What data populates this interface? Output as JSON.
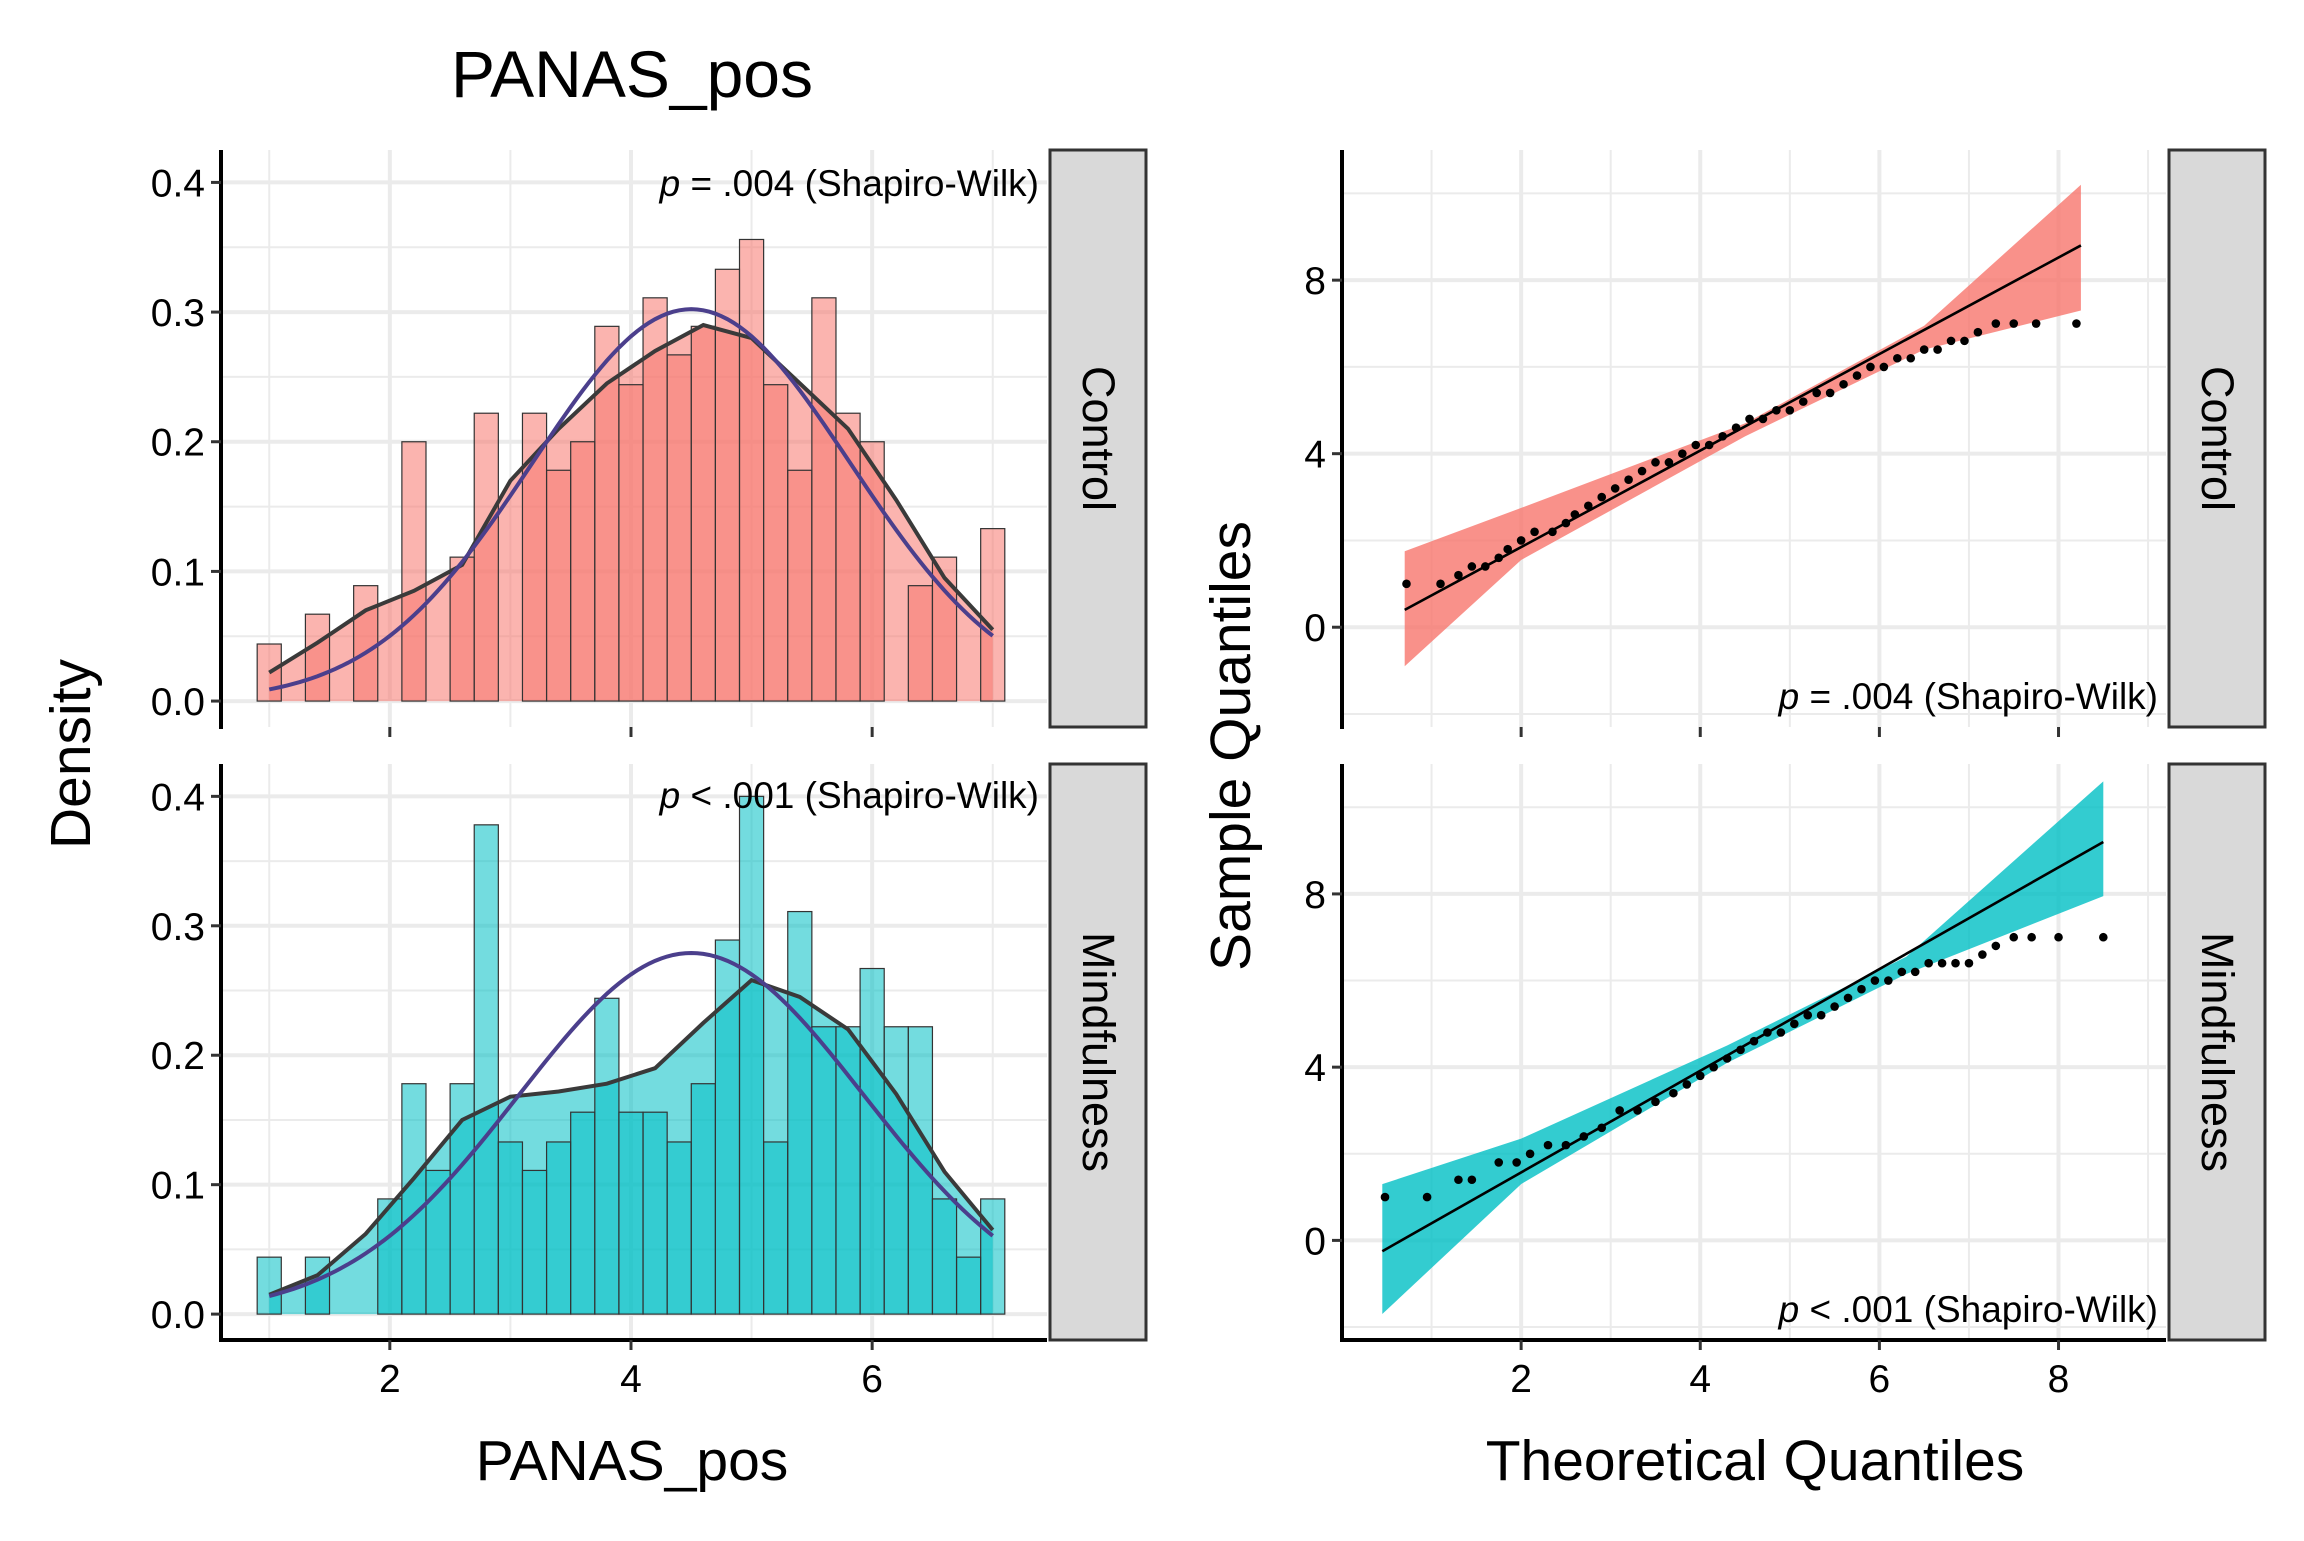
{
  "figure": {
    "title": "PANAS_pos",
    "left_xlabel": "PANAS_pos",
    "left_ylabel": "Density",
    "right_xlabel": "Theoretical Quantiles",
    "right_ylabel": "Sample Quantiles"
  },
  "colors": {
    "control": "#F8766D",
    "mindfulness": "#00BFC4",
    "normal_curve": "#4B3F8C",
    "density_curve": "#3a3a3a",
    "strip_bg": "#D9D9D9",
    "grid": "#EBEBEB"
  },
  "chart_data": [
    {
      "type": "bar",
      "panel": "histogram-control",
      "facet": "Control",
      "annotation": {
        "p": "p",
        "rest": " = .004 (Shapiro-Wilk)"
      },
      "xlim": [
        0.6,
        7.45
      ],
      "ylim": [
        -0.02,
        0.425
      ],
      "xticks": [
        2,
        4,
        6
      ],
      "yticks": [
        0.0,
        0.1,
        0.2,
        0.3,
        0.4
      ],
      "ytick_labels": [
        "0.0",
        "0.1",
        "0.2",
        "0.3",
        "0.4"
      ],
      "bin_width": 0.2,
      "bin_centers": [
        1.0,
        1.2,
        1.4,
        1.6,
        1.8,
        2.0,
        2.2,
        2.4,
        2.6,
        2.8,
        3.0,
        3.2,
        3.4,
        3.6,
        3.8,
        4.0,
        4.2,
        4.4,
        4.6,
        4.8,
        5.0,
        5.2,
        5.4,
        5.6,
        5.8,
        6.0,
        6.2,
        6.4,
        6.6,
        6.8,
        7.0
      ],
      "values": [
        0.044,
        0.0,
        0.067,
        0.0,
        0.089,
        0.0,
        0.2,
        0.0,
        0.111,
        0.222,
        0.0,
        0.222,
        0.178,
        0.2,
        0.289,
        0.244,
        0.311,
        0.267,
        0.289,
        0.333,
        0.356,
        0.244,
        0.178,
        0.311,
        0.222,
        0.2,
        0.0,
        0.089,
        0.111,
        0.0,
        0.133
      ],
      "density_curve": {
        "x": [
          1.0,
          1.4,
          1.8,
          2.2,
          2.6,
          3.0,
          3.4,
          3.8,
          4.2,
          4.6,
          5.0,
          5.4,
          5.8,
          6.2,
          6.6,
          7.0
        ],
        "y": [
          0.022,
          0.045,
          0.07,
          0.085,
          0.105,
          0.17,
          0.21,
          0.245,
          0.27,
          0.29,
          0.28,
          0.245,
          0.21,
          0.155,
          0.095,
          0.055
        ]
      },
      "normal_curve": {
        "mean": 4.5,
        "sd": 1.32
      }
    },
    {
      "type": "bar",
      "panel": "histogram-mindfulness",
      "facet": "Mindfulness",
      "annotation": {
        "p": "p",
        "rest": " < .001 (Shapiro-Wilk)"
      },
      "xlim": [
        0.6,
        7.45
      ],
      "ylim": [
        -0.02,
        0.425
      ],
      "xticks": [
        2,
        4,
        6
      ],
      "yticks": [
        0.0,
        0.1,
        0.2,
        0.3,
        0.4
      ],
      "xtick_labels": [
        "2",
        "4",
        "6"
      ],
      "ytick_labels": [
        "0.0",
        "0.1",
        "0.2",
        "0.3",
        "0.4"
      ],
      "bin_width": 0.2,
      "bin_centers": [
        1.0,
        1.2,
        1.4,
        1.6,
        1.8,
        2.0,
        2.2,
        2.4,
        2.6,
        2.8,
        3.0,
        3.2,
        3.4,
        3.6,
        3.8,
        4.0,
        4.2,
        4.4,
        4.6,
        4.8,
        5.0,
        5.2,
        5.4,
        5.6,
        5.8,
        6.0,
        6.2,
        6.4,
        6.6,
        6.8,
        7.0
      ],
      "values": [
        0.044,
        0.0,
        0.044,
        0.0,
        0.0,
        0.089,
        0.178,
        0.111,
        0.178,
        0.378,
        0.133,
        0.111,
        0.133,
        0.156,
        0.244,
        0.156,
        0.156,
        0.133,
        0.178,
        0.289,
        0.4,
        0.133,
        0.311,
        0.222,
        0.222,
        0.267,
        0.222,
        0.222,
        0.089,
        0.044,
        0.089
      ],
      "density_curve": {
        "x": [
          1.0,
          1.4,
          1.8,
          2.2,
          2.6,
          3.0,
          3.4,
          3.8,
          4.2,
          4.6,
          5.0,
          5.4,
          5.8,
          6.2,
          6.6,
          7.0
        ],
        "y": [
          0.015,
          0.03,
          0.062,
          0.105,
          0.15,
          0.168,
          0.172,
          0.178,
          0.19,
          0.225,
          0.258,
          0.245,
          0.22,
          0.17,
          0.11,
          0.065
        ]
      },
      "normal_curve": {
        "mean": 4.5,
        "sd": 1.43
      }
    },
    {
      "type": "scatter",
      "panel": "qq-control",
      "facet": "Control",
      "annotation": {
        "p": "p",
        "rest": " = .004 (Shapiro-Wilk)"
      },
      "xlim": [
        0.0,
        9.2
      ],
      "ylim": [
        -2.3,
        11.0
      ],
      "xticks": [
        2,
        4,
        6,
        8
      ],
      "yticks": [
        0,
        4,
        8
      ],
      "ytick_labels": [
        "0",
        "4",
        "8"
      ],
      "line": {
        "x": [
          0.7,
          8.25
        ],
        "y": [
          0.4,
          8.8
        ]
      },
      "band": {
        "x": [
          0.7,
          2.0,
          4.5,
          6.5,
          8.25
        ],
        "lower": [
          -0.9,
          1.55,
          4.4,
          6.4,
          7.3
        ],
        "upper": [
          1.75,
          2.75,
          4.7,
          6.95,
          10.2
        ]
      },
      "points": {
        "x": [
          0.72,
          1.1,
          1.3,
          1.45,
          1.6,
          1.75,
          1.85,
          2.0,
          2.15,
          2.35,
          2.5,
          2.6,
          2.75,
          2.9,
          3.05,
          3.2,
          3.35,
          3.5,
          3.65,
          3.8,
          3.95,
          4.1,
          4.25,
          4.4,
          4.55,
          4.7,
          4.85,
          5.0,
          5.15,
          5.3,
          5.45,
          5.6,
          5.75,
          5.9,
          6.05,
          6.2,
          6.35,
          6.5,
          6.65,
          6.8,
          6.95,
          7.1,
          7.3,
          7.5,
          7.75,
          8.2
        ],
        "y": [
          1.0,
          1.0,
          1.2,
          1.4,
          1.4,
          1.6,
          1.8,
          2.0,
          2.2,
          2.2,
          2.4,
          2.6,
          2.8,
          3.0,
          3.2,
          3.4,
          3.6,
          3.8,
          3.8,
          4.0,
          4.2,
          4.2,
          4.4,
          4.6,
          4.8,
          4.8,
          5.0,
          5.0,
          5.2,
          5.4,
          5.4,
          5.6,
          5.8,
          6.0,
          6.0,
          6.2,
          6.2,
          6.4,
          6.4,
          6.6,
          6.6,
          6.8,
          7.0,
          7.0,
          7.0,
          7.0
        ]
      }
    },
    {
      "type": "scatter",
      "panel": "qq-mindfulness",
      "facet": "Mindfulness",
      "annotation": {
        "p": "p",
        "rest": " < .001 (Shapiro-Wilk)"
      },
      "xlim": [
        0.0,
        9.2
      ],
      "ylim": [
        -2.3,
        11.0
      ],
      "xticks": [
        2,
        4,
        6,
        8
      ],
      "yticks": [
        0,
        4,
        8
      ],
      "xtick_labels": [
        "2",
        "4",
        "6",
        "8"
      ],
      "ytick_labels": [
        "0",
        "4",
        "8"
      ],
      "line": {
        "x": [
          0.45,
          8.5
        ],
        "y": [
          -0.25,
          9.2
        ]
      },
      "band": {
        "x": [
          0.45,
          2.0,
          4.3,
          6.3,
          8.5
        ],
        "lower": [
          -1.7,
          1.3,
          4.1,
          6.15,
          7.95
        ],
        "upper": [
          1.3,
          2.35,
          4.5,
          6.55,
          10.6
        ]
      },
      "points": {
        "x": [
          0.48,
          0.95,
          1.3,
          1.45,
          1.75,
          1.95,
          2.1,
          2.3,
          2.5,
          2.7,
          2.9,
          3.1,
          3.3,
          3.5,
          3.7,
          3.85,
          4.0,
          4.15,
          4.3,
          4.45,
          4.6,
          4.75,
          4.9,
          5.05,
          5.2,
          5.35,
          5.5,
          5.65,
          5.8,
          5.95,
          6.1,
          6.25,
          6.4,
          6.55,
          6.7,
          6.85,
          7.0,
          7.15,
          7.3,
          7.5,
          7.7,
          8.0,
          8.5
        ],
        "y": [
          1.0,
          1.0,
          1.4,
          1.4,
          1.8,
          1.8,
          2.0,
          2.2,
          2.2,
          2.4,
          2.6,
          3.0,
          3.0,
          3.2,
          3.4,
          3.6,
          3.8,
          4.0,
          4.2,
          4.4,
          4.6,
          4.8,
          4.8,
          5.0,
          5.2,
          5.2,
          5.4,
          5.6,
          5.8,
          6.0,
          6.0,
          6.2,
          6.2,
          6.4,
          6.4,
          6.4,
          6.4,
          6.6,
          6.8,
          7.0,
          7.0,
          7.0,
          7.0
        ]
      }
    }
  ]
}
